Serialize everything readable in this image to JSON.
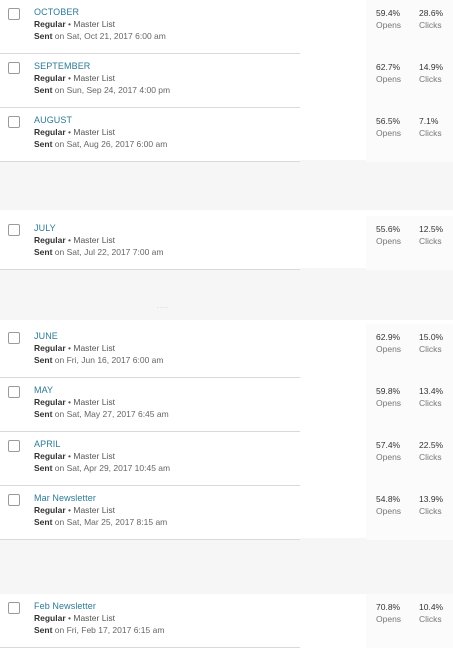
{
  "separator_dots": "....",
  "rows": [
    {
      "name": "OCTOBER",
      "type": "Regular",
      "list": "Master List",
      "sent_label": "Sent",
      "sent_text": "on Sat, Oct 21, 2017 6:00 am",
      "opens": "59.4%",
      "opens_label": "Opens",
      "clicks": "28.6%",
      "clicks_label": "Clicks"
    },
    {
      "name": "SEPTEMBER",
      "type": "Regular",
      "list": "Master List",
      "sent_label": "Sent",
      "sent_text": "on Sun, Sep 24, 2017 4:00 pm",
      "opens": "62.7%",
      "opens_label": "Opens",
      "clicks": "14.9%",
      "clicks_label": "Clicks"
    },
    {
      "name": "AUGUST",
      "type": "Regular",
      "list": "Master List",
      "sent_label": "Sent",
      "sent_text": "on Sat, Aug 26, 2017 6:00 am",
      "opens": "56.5%",
      "opens_label": "Opens",
      "clicks": "7.1%",
      "clicks_label": "Clicks"
    },
    {
      "name": "JULY",
      "type": "Regular",
      "list": "Master List",
      "sent_label": "Sent",
      "sent_text": "on Sat, Jul 22, 2017 7:00 am",
      "opens": "55.6%",
      "opens_label": "Opens",
      "clicks": "12.5%",
      "clicks_label": "Clicks"
    },
    {
      "name": "JUNE",
      "type": "Regular",
      "list": "Master List",
      "sent_label": "Sent",
      "sent_text": "on Fri, Jun 16, 2017 6:00 am",
      "opens": "62.9%",
      "opens_label": "Opens",
      "clicks": "15.0%",
      "clicks_label": "Clicks"
    },
    {
      "name": "MAY",
      "type": "Regular",
      "list": "Master List",
      "sent_label": "Sent",
      "sent_text": "on Sat, May 27, 2017 6:45 am",
      "opens": "59.8%",
      "opens_label": "Opens",
      "clicks": "13.4%",
      "clicks_label": "Clicks"
    },
    {
      "name": "APRIL",
      "type": "Regular",
      "list": "Master List",
      "sent_label": "Sent",
      "sent_text": "on Sat, Apr 29, 2017 10:45 am",
      "opens": "57.4%",
      "opens_label": "Opens",
      "clicks": "22.5%",
      "clicks_label": "Clicks"
    },
    {
      "name": "Mar Newsletter",
      "type": "Regular",
      "list": "Master List",
      "sent_label": "Sent",
      "sent_text": "on Sat, Mar 25, 2017 8:15 am",
      "opens": "54.8%",
      "opens_label": "Opens",
      "clicks": "13.9%",
      "clicks_label": "Clicks"
    },
    {
      "name": "Feb Newsletter",
      "type": "Regular",
      "list": "Master List",
      "sent_label": "Sent",
      "sent_text": "on Fri, Feb 17, 2017 6:15 am",
      "opens": "70.8%",
      "opens_label": "Opens",
      "clicks": "10.4%",
      "clicks_label": "Clicks"
    }
  ]
}
